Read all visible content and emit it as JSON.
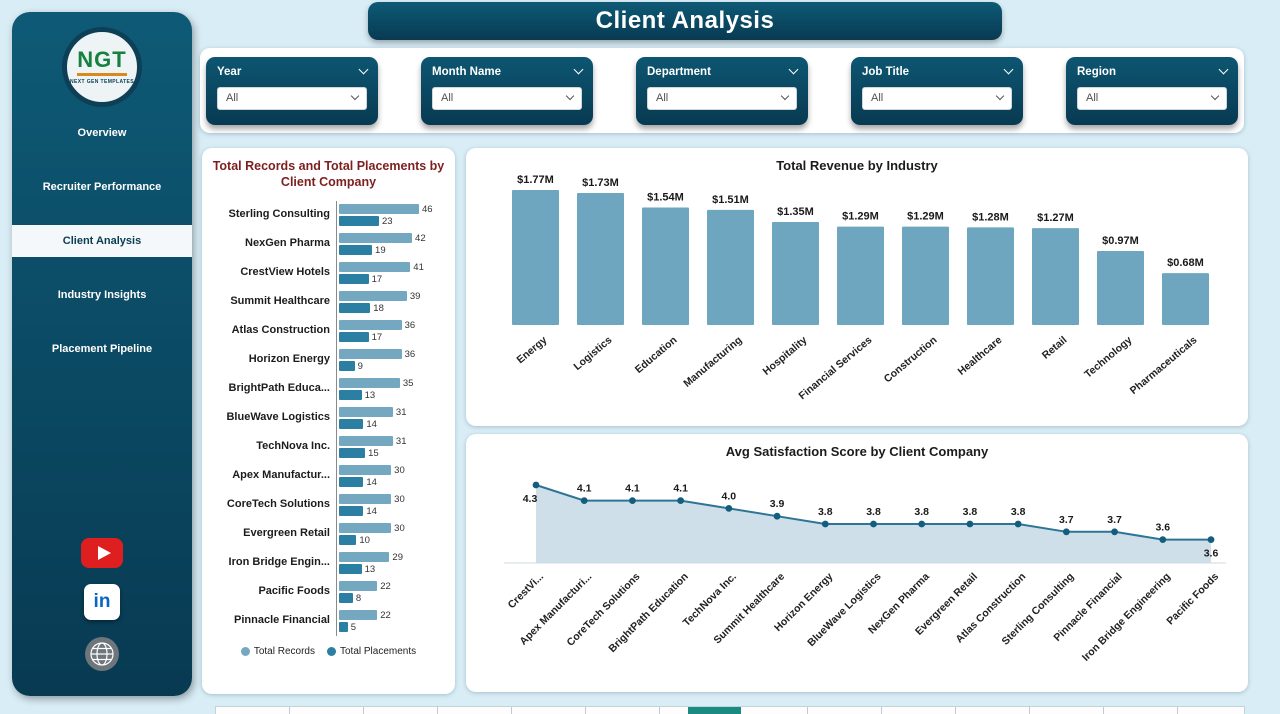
{
  "app": {
    "title": "Client Analysis"
  },
  "colors": {
    "accent": "#0b4a63",
    "page_bg": "#d9edf6",
    "left_title": "#7d1f1f",
    "chart_title": "#1b1b1b",
    "records_bar": "#74a7c0",
    "placements_bar": "#2a7fa2",
    "revenue_bar": "#6ea6bf",
    "area_fill": "#c9dce7",
    "area_line": "#2e7496",
    "area_marker": "#145e7d",
    "youtube_red": "#df1f1f",
    "linkedin_blue": "#0a66c2"
  },
  "sidebar": {
    "logo": {
      "text": "NGT",
      "subtext": "NEXT GEN TEMPLATES"
    },
    "items": [
      {
        "label": "Overview",
        "active": false
      },
      {
        "label": "Recruiter Performance",
        "active": false
      },
      {
        "label": "Client Analysis",
        "active": true
      },
      {
        "label": "Industry Insights",
        "active": false
      },
      {
        "label": "Placement Pipeline",
        "active": false
      }
    ],
    "social_icons": [
      "youtube-icon",
      "linkedin-icon",
      "globe-icon"
    ]
  },
  "filters": {
    "items": [
      {
        "label": "Year",
        "value": "All"
      },
      {
        "label": "Month Name",
        "value": "All"
      },
      {
        "label": "Department",
        "value": "All"
      },
      {
        "label": "Job Title",
        "value": "All"
      },
      {
        "label": "Region",
        "value": "All"
      }
    ]
  },
  "chart_data": [
    {
      "type": "bar",
      "orientation": "horizontal",
      "title": "Total Records and Total Placements by Client Company",
      "categories": [
        "Sterling Consulting",
        "NexGen Pharma",
        "CrestView Hotels",
        "Summit Healthcare",
        "Atlas Construction",
        "Horizon Energy",
        "BrightPath Educa...",
        "BlueWave Logistics",
        "TechNova Inc.",
        "Apex Manufactur...",
        "CoreTech Solutions",
        "Evergreen Retail",
        "Iron Bridge Engin...",
        "Pacific Foods",
        "Pinnacle Financial"
      ],
      "series": [
        {
          "name": "Total Records",
          "color": "#74a7c0",
          "values": [
            46,
            42,
            41,
            39,
            36,
            36,
            35,
            31,
            31,
            30,
            30,
            30,
            29,
            22,
            22
          ]
        },
        {
          "name": "Total Placements",
          "color": "#2a7fa2",
          "values": [
            23,
            19,
            17,
            18,
            17,
            9,
            13,
            14,
            15,
            14,
            14,
            10,
            13,
            8,
            5
          ]
        }
      ],
      "legend_position": "bottom"
    },
    {
      "type": "bar",
      "orientation": "vertical",
      "title": "Total Revenue by Industry",
      "categories": [
        "Energy",
        "Logistics",
        "Education",
        "Manufacturing",
        "Hospitality",
        "Financial Services",
        "Construction",
        "Healthcare",
        "Retail",
        "Technology",
        "Pharmaceuticals"
      ],
      "values": [
        1.77,
        1.73,
        1.54,
        1.51,
        1.35,
        1.29,
        1.29,
        1.28,
        1.27,
        0.97,
        0.68
      ],
      "value_labels": [
        "$1.77M",
        "$1.73M",
        "$1.54M",
        "$1.51M",
        "$1.35M",
        "$1.29M",
        "$1.29M",
        "$1.28M",
        "$1.27M",
        "$0.97M",
        "$0.68M"
      ],
      "color": "#6ea6bf"
    },
    {
      "type": "area",
      "title": "Avg Satisfaction Score by Client Company",
      "categories": [
        "CrestVi...",
        "Apex Manufacturi...",
        "CoreTech Solutions",
        "BrightPath Education",
        "TechNova Inc.",
        "Summit Healthcare",
        "Horizon Energy",
        "BlueWave Logistics",
        "NexGen Pharma",
        "Evergreen Retail",
        "Atlas Construction",
        "Sterling Consulting",
        "Pinnacle Financial",
        "Iron Bridge Engineering",
        "Pacific Foods"
      ],
      "values": [
        4.3,
        4.1,
        4.1,
        4.1,
        4.0,
        3.9,
        3.8,
        3.8,
        3.8,
        3.8,
        3.8,
        3.7,
        3.7,
        3.6,
        3.6
      ],
      "value_labels": [
        "4.3",
        "4.1",
        "4.1",
        "4.1",
        "4.0",
        "3.9",
        "3.8",
        "3.8",
        "3.8",
        "3.8",
        "3.8",
        "3.7",
        "3.7",
        "3.6",
        "3.6"
      ]
    }
  ]
}
